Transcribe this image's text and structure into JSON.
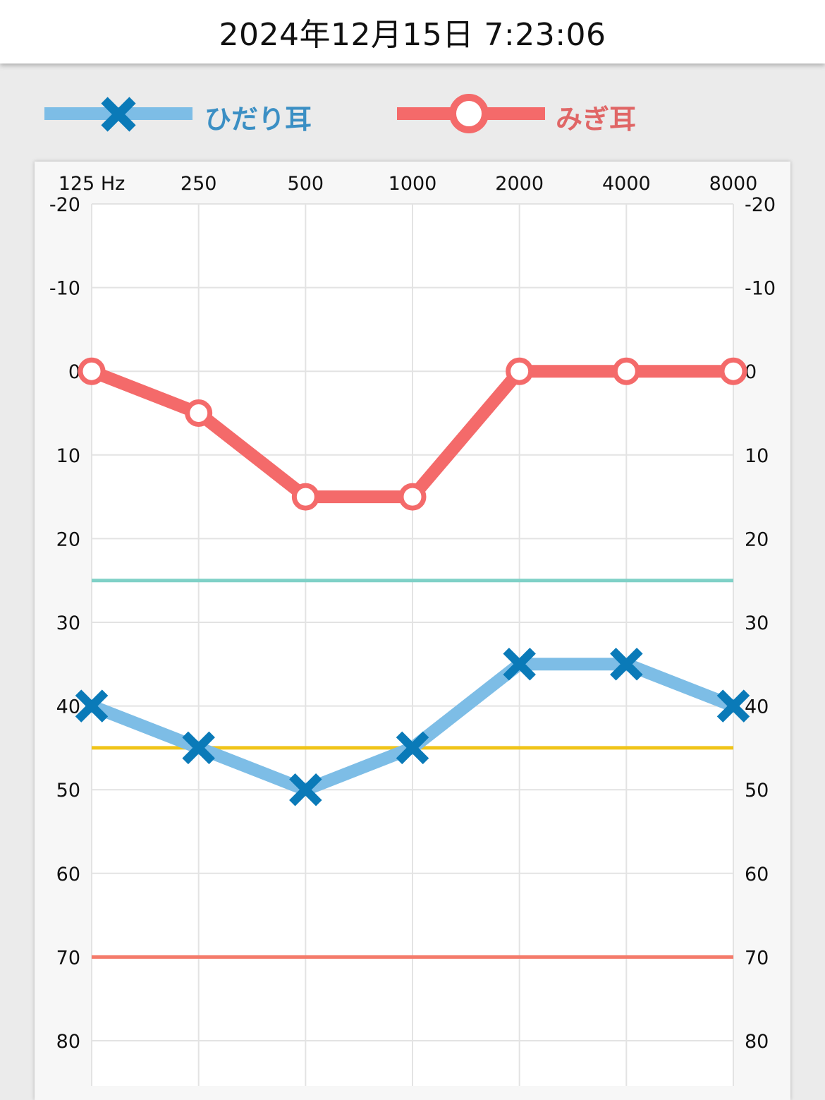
{
  "header": {
    "datetime": "2024年12月15日 7:23:06"
  },
  "legend": [
    {
      "label": "ひだり耳",
      "color": "#7dbde6",
      "marker": "cross-icon",
      "marker_color": "#0a7ab8",
      "text_color": "#3b8fc4"
    },
    {
      "label": "みぎ耳",
      "color": "#f46a6a",
      "marker": "circle-icon",
      "marker_color": "#f46a6a",
      "text_color": "#e06666"
    }
  ],
  "chart_data": {
    "type": "line",
    "x_unit": "Hz",
    "categories": [
      "125 Hz",
      "250",
      "500",
      "1000",
      "2000",
      "4000",
      "8000"
    ],
    "x": [
      125,
      250,
      500,
      1000,
      2000,
      4000,
      8000
    ],
    "ylim": [
      -20,
      80
    ],
    "y_inverted": true,
    "y_ticks": [
      -20,
      -10,
      0,
      10,
      20,
      30,
      40,
      50,
      60,
      70,
      80
    ],
    "y_tick_labels": [
      "-20",
      "-10",
      "0",
      "10",
      "20",
      "30",
      "40",
      "50",
      "60",
      "70",
      "80"
    ],
    "series": [
      {
        "name": "ひだり耳",
        "values": [
          40,
          45,
          50,
          45,
          35,
          35,
          40
        ],
        "color": "#7dbde6",
        "marker": "cross",
        "marker_color": "#0a7ab8"
      },
      {
        "name": "みぎ耳",
        "values": [
          0,
          5,
          15,
          15,
          0,
          0,
          0
        ],
        "color": "#f46a6a",
        "marker": "circle",
        "marker_color": "#f46a6a"
      }
    ],
    "reference_lines": [
      {
        "value": 25,
        "color": "#7fd1c7"
      },
      {
        "value": 45,
        "color": "#f0c419"
      },
      {
        "value": 70,
        "color": "#f47b6b"
      }
    ],
    "grid": true
  }
}
